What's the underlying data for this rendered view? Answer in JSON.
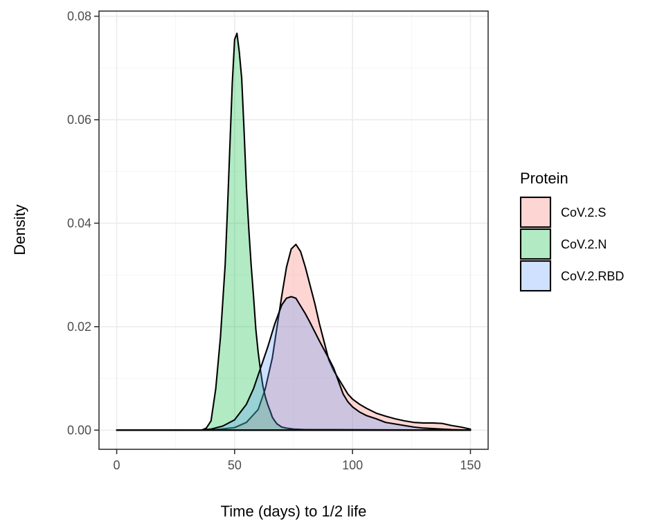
{
  "chart_data": {
    "type": "area",
    "subtype": "density",
    "title": "",
    "xlabel": "Time (days) to 1/2 life",
    "ylabel": "Density",
    "xlim": [
      -7.5,
      157.5
    ],
    "ylim": [
      -0.0037,
      0.081
    ],
    "xticks": [
      0,
      50,
      100,
      150
    ],
    "yticks": [
      0.0,
      0.02,
      0.04,
      0.06,
      0.08
    ],
    "xtick_labels": [
      "0",
      "50",
      "100",
      "150"
    ],
    "ytick_labels": [
      "0.00",
      "0.02",
      "0.04",
      "0.06",
      "0.08"
    ],
    "grid": true,
    "legend": {
      "title": "Protein",
      "position": "right",
      "entries": [
        "CoV.2.S",
        "CoV.2.N",
        "CoV.2.RBD"
      ]
    },
    "series": [
      {
        "name": "CoV.2.S",
        "color": "#F8766D",
        "fill_alpha": 0.3,
        "x": [
          0,
          40,
          50,
          55,
          60,
          63,
          66,
          68,
          70,
          72,
          74,
          76,
          78,
          80,
          82,
          84,
          86,
          88,
          90,
          92,
          94,
          96,
          98,
          100,
          103,
          106,
          110,
          114,
          118,
          122,
          126,
          130,
          134,
          138,
          142,
          146,
          150
        ],
        "y": [
          0,
          0,
          0.0005,
          0.0015,
          0.004,
          0.008,
          0.014,
          0.02,
          0.026,
          0.0315,
          0.035,
          0.0359,
          0.0345,
          0.0315,
          0.028,
          0.0245,
          0.0205,
          0.017,
          0.0135,
          0.0115,
          0.01,
          0.0085,
          0.007,
          0.006,
          0.005,
          0.0042,
          0.0033,
          0.0027,
          0.0022,
          0.0018,
          0.0015,
          0.0014,
          0.0014,
          0.0013,
          0.0009,
          0.0006,
          0.0002
        ]
      },
      {
        "name": "CoV.2.N",
        "color": "#00BA38",
        "fill_alpha": 0.3,
        "x": [
          0,
          36,
          38,
          40,
          42,
          44,
          46,
          47,
          48,
          49,
          50,
          51,
          52,
          53,
          54,
          55,
          56,
          57,
          58,
          59,
          60,
          61,
          62,
          63,
          64,
          65,
          66,
          67,
          68,
          70,
          72,
          75,
          80,
          90,
          150
        ],
        "y": [
          0,
          0,
          0.0004,
          0.0018,
          0.008,
          0.018,
          0.032,
          0.043,
          0.055,
          0.067,
          0.0755,
          0.0767,
          0.073,
          0.068,
          0.058,
          0.047,
          0.039,
          0.032,
          0.026,
          0.0195,
          0.015,
          0.0115,
          0.0085,
          0.0065,
          0.005,
          0.0038,
          0.0025,
          0.0018,
          0.0012,
          0.0006,
          0.0004,
          0.0002,
          0.0001,
          0.0001,
          0
        ]
      },
      {
        "name": "CoV.2.RBD",
        "color": "#619CFF",
        "fill_alpha": 0.3,
        "x": [
          0,
          36,
          40,
          45,
          50,
          55,
          58,
          61,
          64,
          67,
          70,
          72,
          74,
          76,
          78,
          80,
          82,
          84,
          86,
          88,
          90,
          92,
          94,
          96,
          98,
          100,
          103,
          106,
          110,
          114,
          118,
          122,
          126,
          130,
          134,
          138,
          142,
          146,
          150
        ],
        "y": [
          0,
          0,
          0.0002,
          0.0008,
          0.002,
          0.005,
          0.008,
          0.012,
          0.016,
          0.0205,
          0.0242,
          0.0255,
          0.0258,
          0.0255,
          0.024,
          0.0225,
          0.0208,
          0.019,
          0.0172,
          0.0155,
          0.0138,
          0.012,
          0.0095,
          0.007,
          0.0055,
          0.0045,
          0.0035,
          0.0028,
          0.0022,
          0.0015,
          0.0012,
          0.0009,
          0.0006,
          0.0004,
          0.0003,
          0.0002,
          0.0001,
          5e-05,
          0
        ]
      }
    ],
    "draw_order": [
      "CoV.2.S",
      "CoV.2.N",
      "CoV.2.RBD"
    ]
  }
}
